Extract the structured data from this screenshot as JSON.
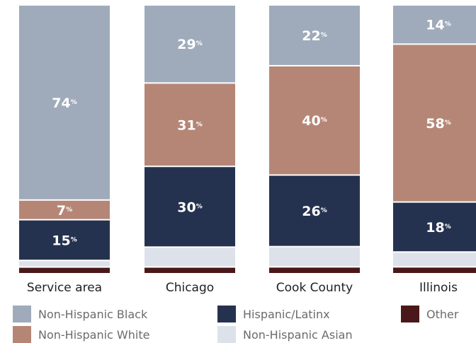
{
  "chart_data": {
    "type": "bar",
    "stacked": true,
    "percent": true,
    "title": "",
    "xlabel": "",
    "ylabel": "",
    "ylim": [
      0,
      100
    ],
    "grid": false,
    "legend_position": "bottom",
    "categories": [
      "Service area",
      "Chicago",
      "Cook County",
      "Illinois"
    ],
    "series": [
      {
        "name": "Other",
        "color": "#4a1818",
        "values": [
          2,
          2,
          2,
          2
        ]
      },
      {
        "name": "Non-Hispanic Asian",
        "color": "#dde2ea",
        "values": [
          2,
          7,
          7,
          5
        ]
      },
      {
        "name": "Hispanic/Latinx",
        "color": "#25324f",
        "values": [
          15,
          30,
          26,
          18
        ]
      },
      {
        "name": "Non-Hispanic White",
        "color": "#b58676",
        "values": [
          7,
          31,
          40,
          58
        ]
      },
      {
        "name": "Non-Hispanic Black",
        "color": "#9fabbb",
        "values": [
          74,
          29,
          22,
          14
        ]
      }
    ],
    "data_labels": {
      "Service area": {
        "Hispanic/Latinx": "15",
        "Non-Hispanic White": "7",
        "Non-Hispanic Black": "74"
      },
      "Chicago": {
        "Hispanic/Latinx": "30",
        "Non-Hispanic White": "31",
        "Non-Hispanic Black": "29"
      },
      "Cook County": {
        "Hispanic/Latinx": "26",
        "Non-Hispanic White": "40",
        "Non-Hispanic Black": "22"
      },
      "Illinois": {
        "Hispanic/Latinx": "18",
        "Non-Hispanic White": "58",
        "Non-Hispanic Black": "14"
      }
    },
    "percent_sign": "%",
    "legend": [
      {
        "name": "Non-Hispanic Black",
        "color": "#9fabbb"
      },
      {
        "name": "Hispanic/Latinx",
        "color": "#25324f"
      },
      {
        "name": "Other",
        "color": "#4a1818"
      },
      {
        "name": "Non-Hispanic White",
        "color": "#b58676"
      },
      {
        "name": "Non-Hispanic Asian",
        "color": "#dde2ea"
      }
    ]
  }
}
